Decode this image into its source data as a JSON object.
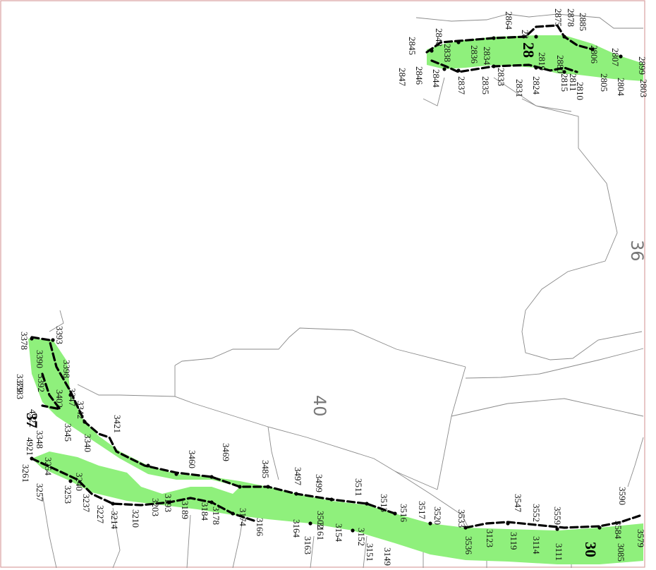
{
  "map": {
    "zones": [
      "36",
      "40"
    ],
    "segments": [
      "28",
      "37",
      "30"
    ],
    "station_labels_top": [
      "2899",
      "2885",
      "2878",
      "2875",
      "2864",
      "2848",
      "2845",
      "2847",
      "2846",
      "2844",
      "2838",
      "2837",
      "2836",
      "2834",
      "2835",
      "2833",
      "28",
      "2831",
      "2824",
      "2819",
      "2880",
      "2815",
      "2811",
      "2810",
      "2806",
      "2805",
      "2807",
      "2804",
      "2803"
    ],
    "station_labels_bottom": [
      "3393",
      "3390",
      "3378",
      "3379",
      "3383",
      "3392",
      "3398",
      "3402",
      "3347",
      "4922",
      "4921",
      "3348",
      "3345",
      "3342",
      "3340",
      "3421",
      "3254",
      "3261",
      "3257",
      "3253",
      "3240",
      "3237",
      "3227",
      "3214",
      "3210",
      "3203",
      "3193",
      "3189",
      "3184",
      "3178",
      "3174",
      "3166",
      "3164",
      "3163",
      "3161",
      "3154",
      "3152",
      "3151",
      "3149",
      "3460",
      "3469",
      "3485",
      "3497",
      "3499",
      "3502",
      "3511",
      "3513",
      "3516",
      "3517",
      "3520",
      "3533",
      "3536",
      "3547",
      "3552",
      "3559",
      "3590",
      "3584",
      "3579",
      "3123",
      "3119",
      "3114",
      "3111",
      "3085"
    ],
    "colors": {
      "corridor": "#8ff07c",
      "boundary": "#000000",
      "parcel_lines": "#8a8a8a",
      "frame": "#d9a0a0"
    }
  }
}
